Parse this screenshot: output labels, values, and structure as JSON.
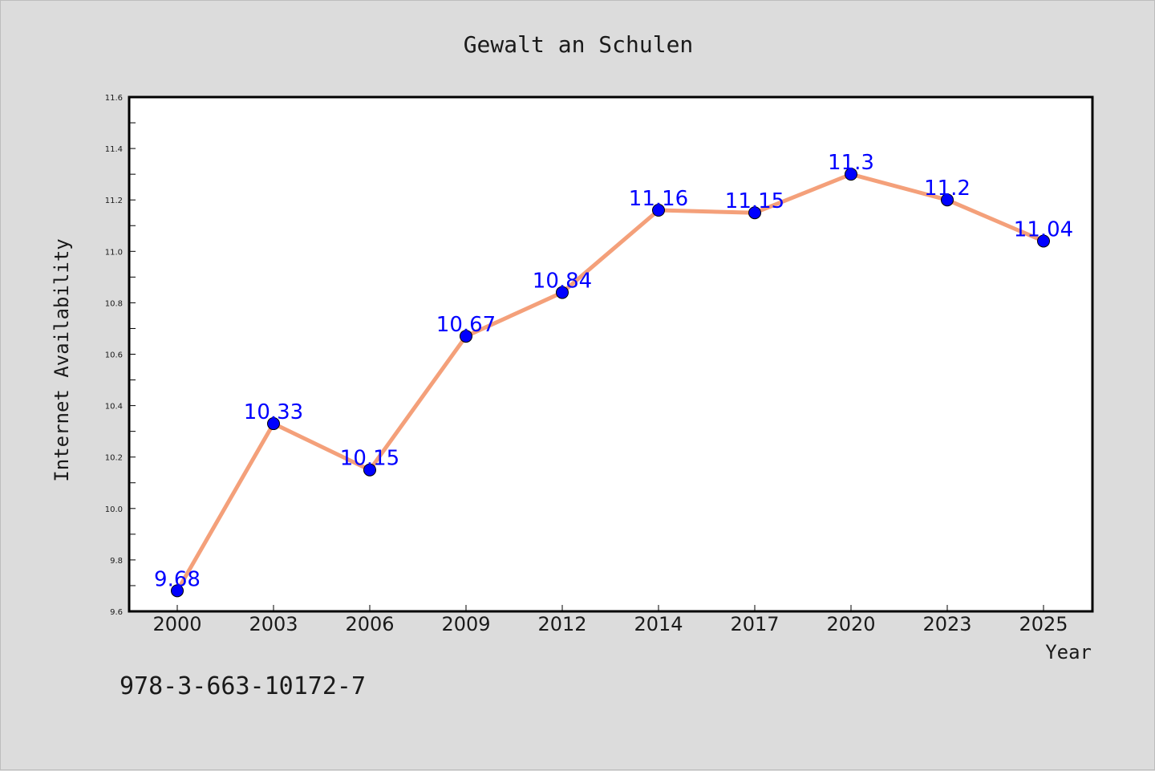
{
  "chart_data": {
    "type": "line",
    "title": "Gewalt an Schulen",
    "xlabel": "Year",
    "ylabel": "Internet Availability",
    "categories": [
      "2000",
      "2003",
      "2006",
      "2009",
      "2012",
      "2014",
      "2017",
      "2020",
      "2023",
      "2025"
    ],
    "series": [
      {
        "values": [
          9.68,
          10.33,
          10.15,
          10.67,
          10.84,
          11.16,
          11.15,
          11.3,
          11.2,
          11.04
        ],
        "labels": [
          "9.68",
          "10.33",
          "10.15",
          "10.67",
          "10.84",
          "11.16",
          "11.15",
          "11.3",
          "11.2",
          "11.04"
        ],
        "line_color": "#f4a07a",
        "marker_color": "#0000ff"
      }
    ],
    "ylim": [
      9.6,
      11.6
    ],
    "yticks": [
      "9.6",
      "9.8",
      "10.0",
      "10.2",
      "10.4",
      "10.6",
      "10.8",
      "11.0",
      "11.2",
      "11.4",
      "11.6"
    ],
    "grid": false,
    "legend": "none",
    "data_label_color": "#0000ff"
  },
  "footer": {
    "isbn": "978-3-663-10172-7"
  },
  "colors": {
    "background": "#dcdcdc",
    "plot_background": "#ffffff",
    "axis": "#000000"
  }
}
